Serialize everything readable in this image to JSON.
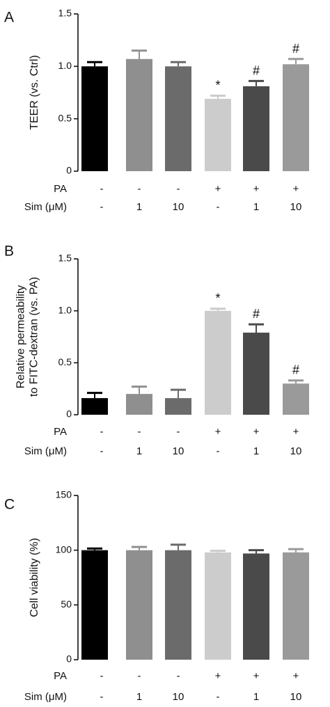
{
  "chart_data": [
    {
      "type": "bar",
      "panel": "A",
      "ylabel": "TEER (vs. Ctrl)",
      "ylim": [
        0,
        1.5
      ],
      "yticks": [
        "0",
        "0.5",
        "1.0",
        "1.5"
      ],
      "grid": false,
      "values": [
        1.0,
        1.07,
        1.0,
        0.69,
        0.81,
        1.02
      ],
      "errors": [
        0.04,
        0.08,
        0.04,
        0.03,
        0.05,
        0.05
      ],
      "significance": [
        "",
        "",
        "",
        "*",
        "#",
        "#"
      ],
      "bar_colors": [
        "#000000",
        "#8f8f8f",
        "#6b6b6b",
        "#cccccc",
        "#4a4a4a",
        "#9a9a9a"
      ],
      "conditions": {
        "rows": [
          {
            "label": "PA",
            "values": [
              "-",
              "-",
              "-",
              "+",
              "+",
              "+"
            ]
          },
          {
            "label": "Sim (μM)",
            "values": [
              "-",
              "1",
              "10",
              "-",
              "1",
              "10"
            ]
          }
        ]
      }
    },
    {
      "type": "bar",
      "panel": "B",
      "ylabel": [
        "Relative permeability",
        "to FITC-dextran (vs. PA)"
      ],
      "ylim": [
        0,
        1.5
      ],
      "yticks": [
        "0",
        "0.5",
        "1.0",
        "1.5"
      ],
      "grid": false,
      "values": [
        0.16,
        0.2,
        0.16,
        1.0,
        0.79,
        0.3
      ],
      "errors": [
        0.05,
        0.07,
        0.08,
        0.02,
        0.08,
        0.03
      ],
      "significance": [
        "",
        "",
        "",
        "*",
        "#",
        "#"
      ],
      "bar_colors": [
        "#000000",
        "#8f8f8f",
        "#6b6b6b",
        "#cccccc",
        "#4a4a4a",
        "#9a9a9a"
      ],
      "conditions": {
        "rows": [
          {
            "label": "PA",
            "values": [
              "-",
              "-",
              "-",
              "+",
              "+",
              "+"
            ]
          },
          {
            "label": "Sim (μM)",
            "values": [
              "-",
              "1",
              "10",
              "-",
              "1",
              "10"
            ]
          }
        ]
      }
    },
    {
      "type": "bar",
      "panel": "C",
      "ylabel": "Cell viability (%)",
      "ylim": [
        0,
        150
      ],
      "yticks": [
        "0",
        "50",
        "100",
        "150"
      ],
      "grid": false,
      "values": [
        100,
        100,
        100,
        98,
        97,
        98
      ],
      "errors": [
        1.5,
        3,
        5,
        1.5,
        3,
        3
      ],
      "significance": [
        "",
        "",
        "",
        "",
        "",
        ""
      ],
      "bar_colors": [
        "#000000",
        "#8f8f8f",
        "#6b6b6b",
        "#cccccc",
        "#4a4a4a",
        "#9a9a9a"
      ],
      "conditions": {
        "rows": [
          {
            "label": "PA",
            "values": [
              "-",
              "-",
              "-",
              "+",
              "+",
              "+"
            ]
          },
          {
            "label": "Sim (μM)",
            "values": [
              "-",
              "1",
              "10",
              "-",
              "1",
              "10"
            ]
          }
        ]
      }
    }
  ]
}
